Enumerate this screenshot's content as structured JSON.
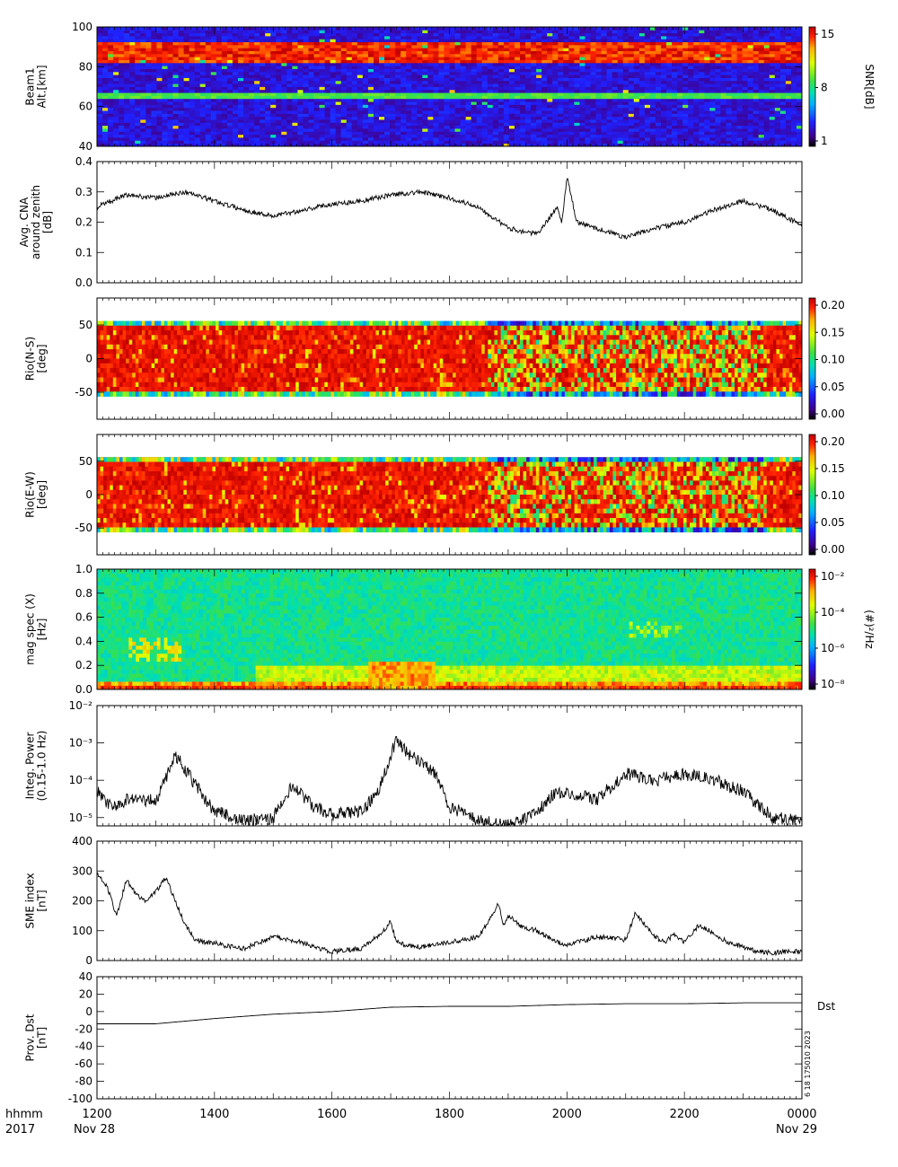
{
  "chart_data": [
    {
      "type": "heatmap",
      "ylabel": [
        "Beam1",
        "Alt.[km]"
      ],
      "ylim": [
        40,
        100
      ],
      "yticks": [
        40,
        60,
        80,
        100
      ],
      "colorbar": {
        "label": "SNR[dB]",
        "range": [
          1,
          15
        ],
        "ticks": [
          "1",
          "8",
          "15"
        ]
      },
      "features": [
        {
          "label": "",
          "alt_center": 87,
          "alt_width": 5,
          "snr": 15
        },
        {
          "label": "",
          "alt_center": 91,
          "alt_width": 1.5,
          "snr": 11
        },
        {
          "label": "",
          "alt_center": 66,
          "alt_width": 1.5,
          "snr": 9
        }
      ]
    },
    {
      "type": "line",
      "ylabel": [
        "Avg. CNA",
        "around zenith",
        "[dB]"
      ],
      "ylim": [
        0.0,
        0.4
      ],
      "yticks": [
        "0.0",
        "0.1",
        "0.2",
        "0.3",
        "0.4"
      ],
      "x": [
        1200,
        1230,
        1300,
        1330,
        1400,
        1430,
        1500,
        1530,
        1600,
        1630,
        1700,
        1730,
        1800,
        1830,
        1900,
        1930,
        1950,
        1955,
        2000,
        2010,
        2030,
        2100,
        2130,
        2200,
        2230,
        2300,
        2330,
        2400
      ],
      "values": [
        0.25,
        0.29,
        0.28,
        0.3,
        0.27,
        0.24,
        0.22,
        0.24,
        0.26,
        0.27,
        0.29,
        0.3,
        0.28,
        0.25,
        0.18,
        0.16,
        0.25,
        0.2,
        0.35,
        0.2,
        0.18,
        0.15,
        0.18,
        0.2,
        0.24,
        0.27,
        0.24,
        0.19
      ]
    },
    {
      "type": "heatmap",
      "ylabel": [
        "Rio(N-S)",
        "[deg]"
      ],
      "ylim": [
        -90,
        90
      ],
      "yticks": [
        "-50",
        "0",
        "50"
      ],
      "colorbar": {
        "label": "",
        "range": [
          0.0,
          0.2
        ],
        "ticks": [
          "0.00",
          "0.05",
          "0.10",
          "0.15",
          "0.20"
        ]
      }
    },
    {
      "type": "heatmap",
      "ylabel": [
        "Rio(E-W)",
        "[deg]"
      ],
      "ylim": [
        -90,
        90
      ],
      "yticks": [
        "-50",
        "0",
        "50"
      ],
      "colorbar": {
        "label": "",
        "range": [
          0.0,
          0.2
        ],
        "ticks": [
          "0.00",
          "0.05",
          "0.10",
          "0.15",
          "0.20"
        ]
      }
    },
    {
      "type": "heatmap",
      "ylabel": [
        "mag spec (X)",
        "[Hz]"
      ],
      "ylim": [
        0.0,
        1.0
      ],
      "yticks": [
        "0.0",
        "0.2",
        "0.4",
        "0.6",
        "0.8",
        "1.0"
      ],
      "colorbar": {
        "label": "(#)²/Hz",
        "ticks": [
          "10⁻⁸",
          "10⁻⁶",
          "10⁻⁴",
          "10⁻²"
        ]
      }
    },
    {
      "type": "line",
      "scale": "log",
      "ylabel": [
        "Integ. Power",
        "(0.15-1.0 Hz)"
      ],
      "ylim": [
        6e-06,
        0.01
      ],
      "yticks": [
        "10⁻⁵",
        "10⁻⁴",
        "10⁻³",
        "10⁻²"
      ],
      "x": [
        1200,
        1215,
        1230,
        1300,
        1310,
        1320,
        1330,
        1345,
        1400,
        1430,
        1500,
        1520,
        1540,
        1600,
        1630,
        1645,
        1700,
        1705,
        1715,
        1730,
        1745,
        1800,
        1830,
        1900,
        1930,
        1945,
        2000,
        2030,
        2100,
        2130,
        2200,
        2230,
        2300,
        2330,
        2400
      ],
      "values": [
        5e-05,
        2e-05,
        3e-05,
        3e-05,
        0.0001,
        0.0005,
        0.0002,
        5e-05,
        1.5e-05,
        8e-06,
        1e-05,
        8e-05,
        2e-05,
        1.2e-05,
        1.5e-05,
        4e-05,
        0.0004,
        0.0012,
        0.0006,
        0.0003,
        0.00015,
        2e-05,
        8e-06,
        6e-06,
        1.5e-05,
        4e-05,
        5e-05,
        3e-05,
        0.00015,
        0.0001,
        0.00015,
        0.0001,
        5e-05,
        1e-05,
        8e-06
      ]
    },
    {
      "type": "line",
      "ylabel": [
        "SME index",
        "[nT]"
      ],
      "ylim": [
        0,
        400
      ],
      "yticks": [
        "0",
        "100",
        "200",
        "300",
        "400"
      ],
      "x": [
        1200,
        1210,
        1220,
        1230,
        1240,
        1250,
        1300,
        1310,
        1320,
        1330,
        1340,
        1350,
        1400,
        1410,
        1420,
        1430,
        1500,
        1530,
        1545,
        1600,
        1630,
        1650,
        1700,
        1705,
        1715,
        1730,
        1800,
        1830,
        1850,
        1855,
        1900,
        1915,
        1930,
        1945,
        2000,
        2030,
        2100,
        2110,
        2130,
        2140,
        2150,
        2200,
        2215,
        2230,
        2245,
        2300,
        2315,
        2330,
        2345,
        2400
      ],
      "values": [
        290,
        250,
        150,
        270,
        220,
        200,
        230,
        280,
        200,
        120,
        70,
        60,
        60,
        50,
        45,
        40,
        80,
        60,
        40,
        30,
        40,
        90,
        130,
        70,
        50,
        45,
        60,
        80,
        190,
        120,
        150,
        110,
        100,
        70,
        50,
        80,
        70,
        160,
        80,
        60,
        90,
        60,
        120,
        90,
        60,
        45,
        30,
        25,
        30,
        30
      ]
    },
    {
      "type": "line",
      "ylabel": [
        "Prov. Dst",
        "[nT]"
      ],
      "ylim": [
        -100,
        40
      ],
      "yticks": [
        "40",
        "20",
        "0",
        "-20",
        "-40",
        "-60",
        "-80",
        "-100"
      ],
      "legend": "Dst",
      "x": [
        1200,
        1300,
        1400,
        1500,
        1600,
        1700,
        1800,
        1900,
        2000,
        2100,
        2200,
        2300,
        2400
      ],
      "values": [
        -14,
        -14,
        -8,
        -3,
        0,
        5,
        6,
        6,
        8,
        9,
        9,
        10,
        10
      ]
    }
  ],
  "x_axis": {
    "range": [
      1200,
      2400
    ],
    "tick_labels": [
      "1200",
      "1400",
      "1600",
      "1800",
      "2000",
      "2200",
      "0000"
    ],
    "row_label": "hhmm",
    "year_label": "2017",
    "start_date": "Nov 28",
    "end_date": "Nov 29"
  },
  "stamp": "6 18 175010 2023",
  "colors": {
    "line": "#000000",
    "snr_band": "#cc0000",
    "riometer_bg": "#a50000"
  }
}
